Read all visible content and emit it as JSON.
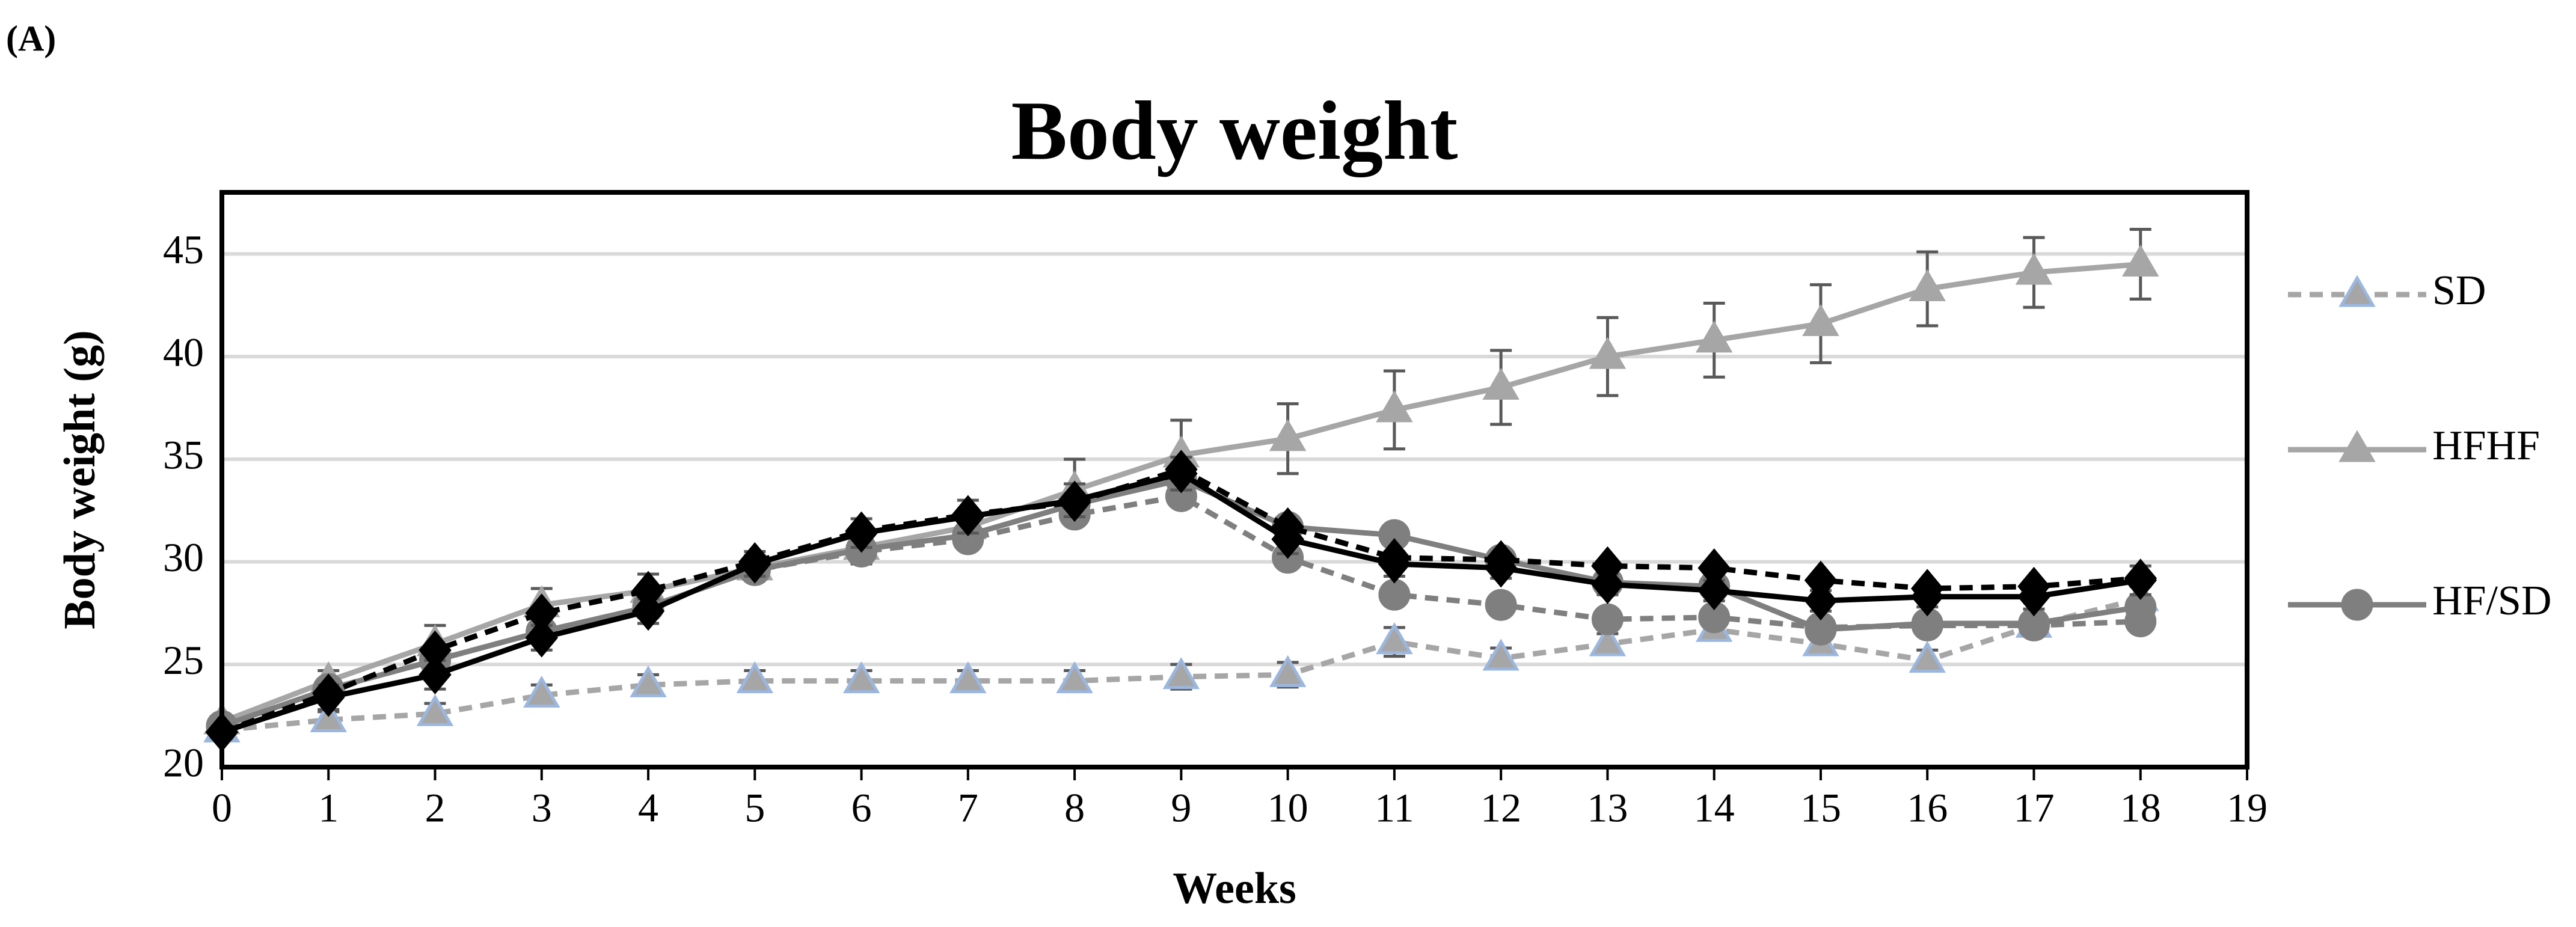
{
  "panel_label": "(A)",
  "chart_data": {
    "type": "line",
    "title": "Body weight",
    "x_label": "Weeks",
    "y_label": "Body weight (g)",
    "x": [
      0,
      1,
      2,
      3,
      4,
      5,
      6,
      7,
      8,
      9,
      10,
      11,
      12,
      13,
      14,
      15,
      16,
      17,
      18
    ],
    "xlim": [
      0,
      19
    ],
    "xticks": [
      0,
      1,
      2,
      3,
      4,
      5,
      6,
      7,
      8,
      9,
      10,
      11,
      12,
      13,
      14,
      15,
      16,
      17,
      18,
      19
    ],
    "ylim": [
      20,
      48
    ],
    "yticks": [
      20,
      25,
      30,
      35,
      40,
      45
    ],
    "grid": true,
    "legend": "right",
    "series": [
      {
        "name": "SD",
        "color": "#a6a6a6",
        "marker_edge": "#9bb7e0",
        "marker": "triangle",
        "dashed": true,
        "values": [
          21.8,
          22.3,
          22.6,
          23.5,
          24.0,
          24.2,
          24.2,
          24.2,
          24.2,
          24.4,
          24.5,
          26.1,
          25.3,
          26.0,
          26.7,
          26.0,
          25.2,
          26.9,
          28.2
        ],
        "errors": [
          0.3,
          0.4,
          0.5,
          0.5,
          0.5,
          0.5,
          0.5,
          0.5,
          0.5,
          0.6,
          0.6,
          0.7,
          0.5,
          0.5,
          0.5,
          0.5,
          0.5,
          0.5,
          0.6
        ]
      },
      {
        "name": "HFHF",
        "color": "#a6a6a6",
        "marker_edge": "#a6a6a6",
        "marker": "triangle",
        "dashed": false,
        "values": [
          22.2,
          24.2,
          26.0,
          27.9,
          28.6,
          29.7,
          30.7,
          31.7,
          33.5,
          35.2,
          36.0,
          37.4,
          38.5,
          40.0,
          40.8,
          41.6,
          43.3,
          44.1,
          44.5
        ],
        "errors": [
          0.3,
          0.5,
          0.9,
          0.8,
          0.8,
          0.6,
          0.8,
          0.8,
          1.5,
          1.7,
          1.7,
          1.9,
          1.8,
          1.9,
          1.8,
          1.9,
          1.8,
          1.7,
          1.7
        ]
      },
      {
        "name": "HF/SD",
        "color": "#7f7f7f",
        "marker_edge": "#7f7f7f",
        "marker": "circle",
        "dashed": false,
        "values": [
          22.0,
          23.8,
          25.2,
          26.6,
          27.8,
          29.6,
          30.6,
          31.3,
          32.8,
          34.0,
          31.7,
          31.3,
          30.1,
          29.0,
          28.8,
          26.7,
          27.0,
          27.0,
          27.8
        ]
      },
      {
        "color": "#7f7f7f",
        "marker_edge": "#7f7f7f",
        "marker": "circle",
        "dashed": true,
        "values": [
          22.0,
          23.8,
          25.2,
          26.6,
          27.8,
          29.6,
          30.5,
          31.1,
          32.3,
          33.2,
          30.2,
          28.4,
          27.9,
          27.2,
          27.3,
          26.8,
          26.9,
          26.9,
          27.1
        ]
      },
      {
        "color": "#000000",
        "marker_edge": "#000000",
        "marker": "diamond",
        "dashed": false,
        "values": [
          21.7,
          23.4,
          24.5,
          26.3,
          27.6,
          29.9,
          31.4,
          32.2,
          33.0,
          34.3,
          31.1,
          29.9,
          29.7,
          28.9,
          28.6,
          28.1,
          28.3,
          28.3,
          29.1
        ],
        "errors": [
          0.3,
          0.6,
          0.7,
          0.6,
          0.6,
          0.6,
          0.7,
          0.8,
          0.8,
          0.8,
          0.7,
          0.6,
          0.5,
          0.5,
          0.5,
          0.5,
          0.5,
          0.6,
          0.7
        ]
      },
      {
        "color": "#000000",
        "marker_edge": "#000000",
        "marker": "diamond",
        "dashed": true,
        "values": [
          21.7,
          23.6,
          25.7,
          27.5,
          28.6,
          30.0,
          31.5,
          32.3,
          32.9,
          34.5,
          31.7,
          30.2,
          30.1,
          29.8,
          29.7,
          29.1,
          28.7,
          28.8,
          29.2
        ]
      }
    ]
  }
}
